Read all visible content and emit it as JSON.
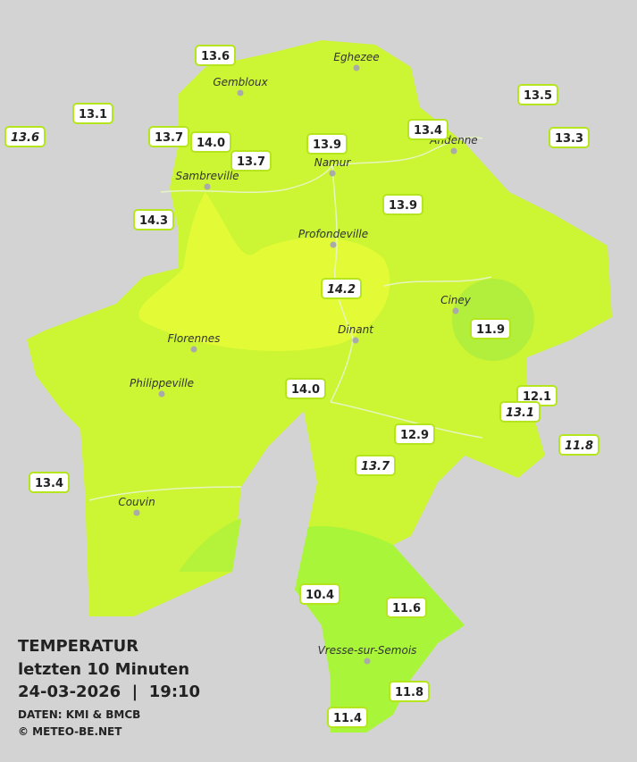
{
  "title": {
    "line1": "TEMPERATUR",
    "line2": "letzten 10 Minuten",
    "line3": "24-03-2026  |  19:10",
    "source": "DATEN: KMI & BMCB",
    "copyright": "© METEO-BE.NET"
  },
  "cities": [
    "Eghezee",
    "Gembloux",
    "Andenne",
    "Namur",
    "Sambreville",
    "Profondeville",
    "Ciney",
    "Florennes",
    "Dinant",
    "Philippeville",
    "Couvin",
    "Vresse-sur-Semois"
  ],
  "stations": [
    {
      "label": "13.6",
      "italic": false
    },
    {
      "label": "13.1",
      "italic": false
    },
    {
      "label": "13.6",
      "italic": true
    },
    {
      "label": "13.7",
      "italic": false
    },
    {
      "label": "14.0",
      "italic": false
    },
    {
      "label": "13.9",
      "italic": false
    },
    {
      "label": "13.4",
      "italic": false
    },
    {
      "label": "13.5",
      "italic": false
    },
    {
      "label": "13.3",
      "italic": false
    },
    {
      "label": "13.7",
      "italic": false
    },
    {
      "label": "14.3",
      "italic": false
    },
    {
      "label": "13.9",
      "italic": false
    },
    {
      "label": "14.2",
      "italic": true
    },
    {
      "label": "11.9",
      "italic": false
    },
    {
      "label": "14.0",
      "italic": false
    },
    {
      "label": "12.1",
      "italic": false
    },
    {
      "label": "13.1",
      "italic": true
    },
    {
      "label": "11.8",
      "italic": true
    },
    {
      "label": "12.9",
      "italic": false
    },
    {
      "label": "13.7",
      "italic": true
    },
    {
      "label": "13.4",
      "italic": false
    },
    {
      "label": "10.4",
      "italic": false
    },
    {
      "label": "11.6",
      "italic": false
    },
    {
      "label": "11.8",
      "italic": false
    },
    {
      "label": "11.4",
      "italic": false
    }
  ]
}
